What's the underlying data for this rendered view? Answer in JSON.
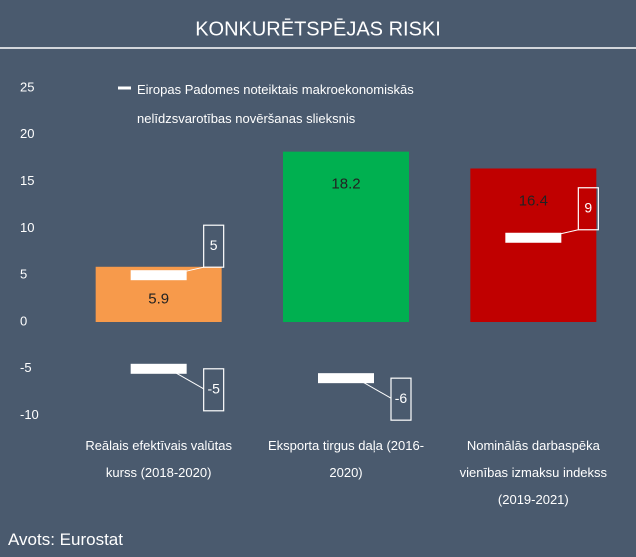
{
  "chart_data": {
    "type": "bar",
    "title": "KONKURĒTSPĒJAS RISKI",
    "categories": [
      "Reālais efektīvais valūtas kurss (2018-2020)",
      "Eksporta tirgus daļa (2016-2020)",
      "Nominālās darbaspēka vienības izmaksu indekss (2019-2021)"
    ],
    "values": [
      5.9,
      18.2,
      16.4
    ],
    "colors": [
      "#f79a4b",
      "#00b050",
      "#c00000"
    ],
    "thresholds": {
      "name": "Eiropas Padomes noteiktais makroekonomiskās nelīdzsvarotības novēršanas slieksnis",
      "color": "#ffffff",
      "upper": [
        5,
        null,
        9
      ],
      "lower": [
        -5,
        -6,
        null
      ]
    },
    "ylim": [
      -10,
      25
    ],
    "yticks": [
      -10,
      -5,
      0,
      5,
      10,
      15,
      20,
      25
    ],
    "grid": false,
    "source": "Avots: Eurostat"
  }
}
